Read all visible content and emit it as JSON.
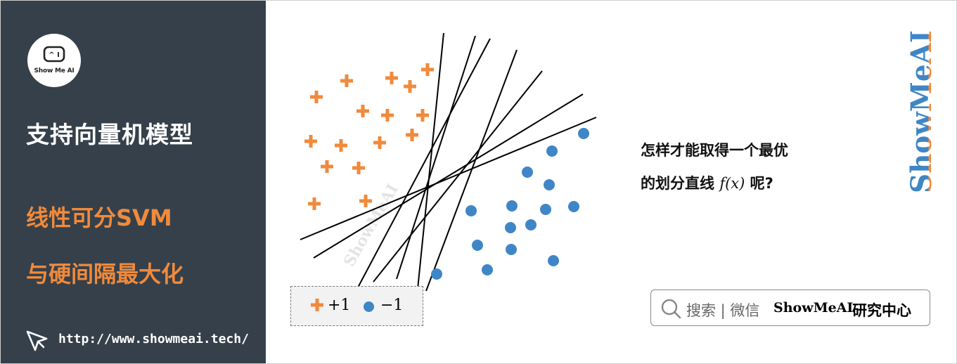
{
  "sidebar": {
    "logo_text": "Show Me AI",
    "title": "支持向量机模型",
    "subtitle_line1": "线性可分SVM",
    "subtitle_line2": "与硬间隔最大化",
    "url": "http://www.showmeai.tech/"
  },
  "diagram": {
    "question_line1": "怎样才能取得一个最优",
    "question_line2_prefix": "的划分直线",
    "question_fx": "f(x)",
    "question_line2_suffix": "呢?",
    "legend": {
      "positive_label": "+1",
      "negative_label": "−1"
    },
    "colors": {
      "positive": "#f08a3c",
      "negative": "#3f86c6"
    }
  },
  "chart_data": {
    "type": "scatter",
    "series": [
      {
        "name": "+1",
        "points": [
          [
            449,
            137
          ],
          [
            492,
            114
          ],
          [
            556,
            110
          ],
          [
            582,
            122
          ],
          [
            607,
            98
          ],
          [
            515,
            157
          ],
          [
            550,
            163
          ],
          [
            600,
            163
          ],
          [
            441,
            200
          ],
          [
            484,
            206
          ],
          [
            539,
            202
          ],
          [
            585,
            191
          ],
          [
            464,
            236
          ],
          [
            509,
            238
          ],
          [
            446,
            289
          ],
          [
            519,
            285
          ]
        ]
      },
      {
        "name": "−1",
        "points": [
          [
            829,
            189
          ],
          [
            784,
            214
          ],
          [
            749,
            244
          ],
          [
            780,
            262
          ],
          [
            669,
            299
          ],
          [
            727,
            292
          ],
          [
            775,
            297
          ],
          [
            815,
            293
          ],
          [
            725,
            323
          ],
          [
            754,
            319
          ],
          [
            678,
            348
          ],
          [
            726,
            354
          ],
          [
            786,
            370
          ],
          [
            692,
            383
          ],
          [
            620,
            389
          ]
        ]
      }
    ],
    "lines": [
      [
        [
          630,
          46
        ],
        [
          593,
          410
        ]
      ],
      [
        [
          675,
          50
        ],
        [
          563,
          396
        ]
      ],
      [
        [
          696,
          54
        ],
        [
          508,
          408
        ]
      ],
      [
        [
          734,
          70
        ],
        [
          605,
          413
        ]
      ],
      [
        [
          770,
          100
        ],
        [
          530,
          400
        ]
      ],
      [
        [
          828,
          133
        ],
        [
          445,
          366
        ]
      ],
      [
        [
          847,
          166
        ],
        [
          426,
          340
        ]
      ]
    ]
  },
  "watermark": {
    "vertical": "ShowMeAI",
    "diagonal": "ShowMeAI"
  },
  "search": {
    "label": "搜索 | 微信",
    "brand": "ShowMeAI",
    "center": "研究中心"
  }
}
